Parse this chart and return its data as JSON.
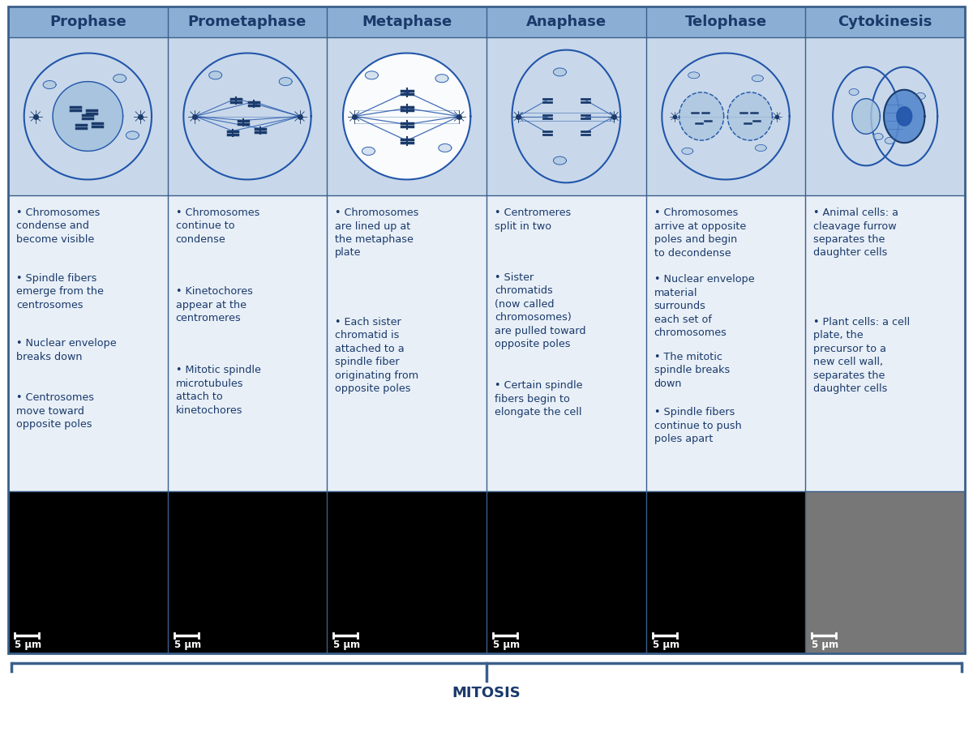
{
  "stages": [
    "Prophase",
    "Prometaphase",
    "Metaphase",
    "Anaphase",
    "Telophase",
    "Cytokinesis"
  ],
  "header_bg": "#8BAFD4",
  "cell_bg": "#C8D8EA",
  "text_bg": "#E8EFF7",
  "border_color": "#3A5F8A",
  "text_color": "#1A3A6B",
  "title_color": "#1A3A6B",
  "background_color": "#ffffff",
  "bullet_points": [
    [
      "Chromosomes\ncondense and\nbecome visible",
      "Spindle fibers\nemerge from the\ncentrosomes",
      "Nuclear envelope\nbreaks down",
      "Centrosomes\nmove toward\nopposite poles"
    ],
    [
      "Chromosomes\ncontinue to\ncondense",
      "Kinetochores\nappear at the\ncentromeres",
      "Mitotic spindle\nmicrotubules\nattach to\nkinetochores",
      ""
    ],
    [
      "Chromosomes\nare lined up at\nthe metaphase\nplate",
      "Each sister\nchromatid is\nattached to a\nspindle fiber\noriginating from\nopposite poles",
      "",
      ""
    ],
    [
      "Centromeres\nsplit in two",
      "Sister\nchromatids\n(now called\nchromosomes)\nare pulled toward\nopposite poles",
      "Certain spindle\nfibers begin to\nelongate the cell",
      ""
    ],
    [
      "Chromosomes\narrive at opposite\npoles and begin\nto decondense",
      "Nuclear envelope\nmaterial\nsurrounds\neach set of\nchromosomes",
      "The mitotic\nspindle breaks\ndown",
      "Spindle fibers\ncontinue to push\npoles apart"
    ],
    [
      "Animal cells: a\ncleavage furrow\nseparates the\ndaughter cells",
      "Plant cells: a cell\nplate, the\nprecursor to a\nnew cell wall,\nseparates the\ndaughter cells",
      "",
      ""
    ]
  ],
  "mitosis_label": "MITOSIS",
  "scale_label": "5 μm",
  "photo_bg_colors": [
    "#000000",
    "#000000",
    "#000000",
    "#000000",
    "#000000",
    "#777777"
  ],
  "header_fontsize": 13,
  "bullet_fontsize": 9.2,
  "mitosis_fontsize": 13
}
